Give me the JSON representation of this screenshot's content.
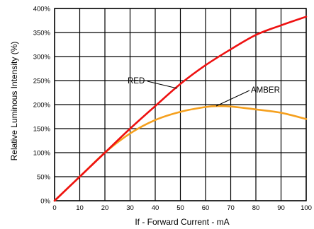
{
  "chart_data": {
    "type": "line",
    "title": "",
    "xlabel": "If - Forward Current - mA",
    "ylabel": "Relative Luminous Intensity (%)",
    "xlim": [
      0,
      100
    ],
    "ylim": [
      0,
      400
    ],
    "x_ticks": [
      "0",
      "10",
      "20",
      "30",
      "40",
      "50",
      "60",
      "70",
      "80",
      "90",
      "100"
    ],
    "y_ticks": [
      "0%",
      "50%",
      "100%",
      "150%",
      "200%",
      "250%",
      "300%",
      "350%",
      "400%"
    ],
    "grid": true,
    "legend": "none",
    "series": [
      {
        "name": "RED",
        "color": "#ee1111",
        "x": [
          0,
          10,
          20,
          30,
          40,
          50,
          60,
          70,
          80,
          90,
          100
        ],
        "y": [
          0,
          50,
          100,
          150,
          197,
          243,
          282,
          315,
          345,
          365,
          383
        ]
      },
      {
        "name": "AMBER",
        "color": "#f5a01e",
        "x": [
          0,
          10,
          20,
          30,
          40,
          50,
          60,
          65,
          70,
          80,
          90,
          100
        ],
        "y": [
          0,
          50,
          100,
          140,
          168,
          185,
          195,
          197,
          196,
          190,
          183,
          170
        ]
      }
    ]
  }
}
